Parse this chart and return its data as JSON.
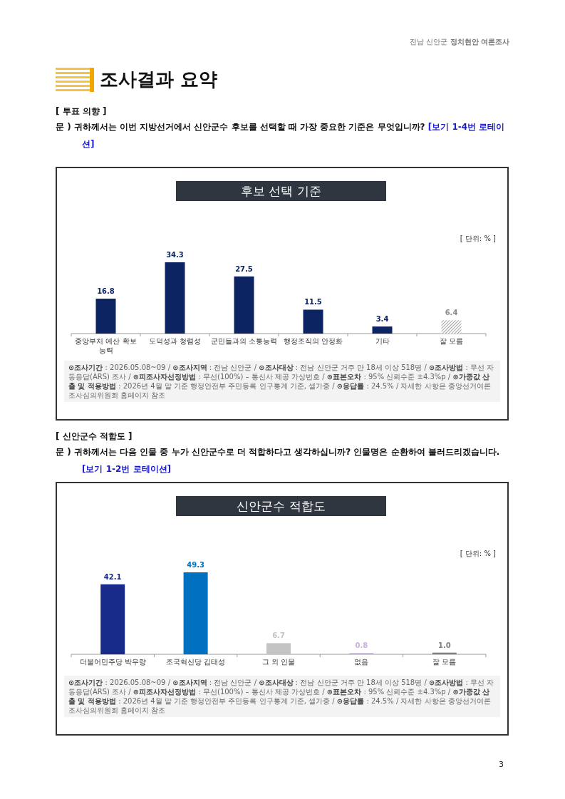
{
  "chart_data": [
    {
      "type": "bar",
      "title": "후보 선택 기준",
      "categories": [
        "중앙부처 예산 확보 능력",
        "도덕성과 청렴성",
        "군민들과의 소통능력",
        "행정조직의 안정화",
        "기타",
        "잘 모름"
      ],
      "values": [
        16.8,
        34.3,
        27.5,
        11.5,
        3.4,
        6.4
      ],
      "colors": [
        "#0c2461",
        "#0c2461",
        "#0c2461",
        "#0c2461",
        "#0c2461",
        "#8a8a8a"
      ],
      "data_labels": true,
      "legend": false,
      "grid": false,
      "annotations": [
        "전남 신안군 **정치현안 여론조사**",
        "조사결과 요약",
        "[ 투표 의향 ]",
        "문 )  귀하께서는 이번 지방선거에서 신안군수 후보를 선택할 때 가장 중요한 기준은 무엇입니까?",
        "[보기 1-4번 로테이션]",
        "[ 단위: % ]",
        "**⊙조사기간** : 2026.05.08~09 / **⊙조사지역** : 전남 신안군 / **⊙조사대상** : 전남 신안군 거주 만 18세 이상 518명 / **⊙조사방법** : 무선 자동응답(ARS) 조사 / **⊙피조사자선정방법** : 무선(100%) – 통신사 제공 가상번호 / **⊙표본오차** : 95% 신뢰수준 ±4.3%p / **⊙가중값 산출 및 적용방법** : 2026년 4월 말 기준 행정안전부 주민등록 인구통계 기준, 셀가중 / **⊙응답률** : 24.5% / 자세한 사항은 중앙선거여론조사심의위원회 홈페이지 참조",
        "3"
      ]
    },
    {
      "type": "bar",
      "title": "신안군수 적합도",
      "categories": [
        "더불어민주당 박우량",
        "조국혁신당 김태성",
        "그 외 인물",
        "없음",
        "잘 모름"
      ],
      "values": [
        42.1,
        49.3,
        6.7,
        0.8,
        1.0
      ],
      "value_labels": [
        "42.1",
        "49.3",
        "6.7",
        "0.8",
        "1.0"
      ],
      "colors": [
        "#182a8a",
        "#0070c0",
        "#c4c4c4",
        "#c9b2db",
        "#7f7f7f"
      ],
      "legend": false,
      "grid": false,
      "annotations": [
        "[ 신안군수 적합도 ]",
        "문 )  귀하께서는 다음 인물 중 누가 신안군수로 더 적합하다고 생각하십니까? 인물명은 순환하여 불러드리겠습니다.",
        "[보기 1-2번 로테이션]",
        "[ 단위: % ]",
        "**⊙조사기간** : 2026.05.08~09 / **⊙조사지역** : 전남 신안군 / **⊙조사대상** : 전남 신안군 거주 만 18세 이상 518명 / **⊙조사방법** : 무선 자동응답(ARS) 조사 / **⊙피조사자선정방법** : 무선(100%) – 통신사 제공 가상번호 / **⊙표본오차** : 95% 신뢰수준 ±4.3%p / **⊙가중값 산출 및 적용방법** : 2026년 4월 말 기준 행정안전부 주민등록 인구통계 기준, 셀가중 / **⊙응답률** : 24.5% / 자세한 사항은 중앙선거여론조사심의위원회 홈페이지 참조"
      ]
    }
  ]
}
